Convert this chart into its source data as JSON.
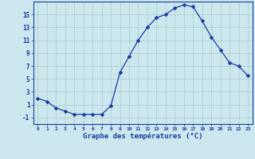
{
  "hours": [
    0,
    1,
    2,
    3,
    4,
    5,
    6,
    7,
    8,
    9,
    10,
    11,
    12,
    13,
    14,
    15,
    16,
    17,
    18,
    19,
    20,
    21,
    22,
    23
  ],
  "temps": [
    2.0,
    1.5,
    0.5,
    0.0,
    -0.5,
    -0.5,
    -0.5,
    -0.5,
    0.8,
    6.0,
    8.5,
    11.0,
    13.0,
    14.5,
    15.0,
    16.0,
    16.5,
    16.2,
    14.0,
    11.5,
    9.5,
    7.5,
    7.0,
    5.5
  ],
  "line_color": "#1a3a9e",
  "marker": "D",
  "marker_size": 2.5,
  "bg_color": "#cce8ee",
  "grid_color_major": "#aacccc",
  "grid_color_minor": "#bbdddd",
  "axis_label_color": "#1a3a9e",
  "tick_color": "#1a3a9e",
  "xlabel": "Graphe des températures (°C)",
  "xlim": [
    -0.5,
    23.5
  ],
  "ylim": [
    -2,
    17
  ],
  "yticks": [
    -1,
    1,
    3,
    5,
    7,
    9,
    11,
    13,
    15
  ],
  "xticks": [
    0,
    1,
    2,
    3,
    4,
    5,
    6,
    7,
    8,
    9,
    10,
    11,
    12,
    13,
    14,
    15,
    16,
    17,
    18,
    19,
    20,
    21,
    22,
    23
  ]
}
